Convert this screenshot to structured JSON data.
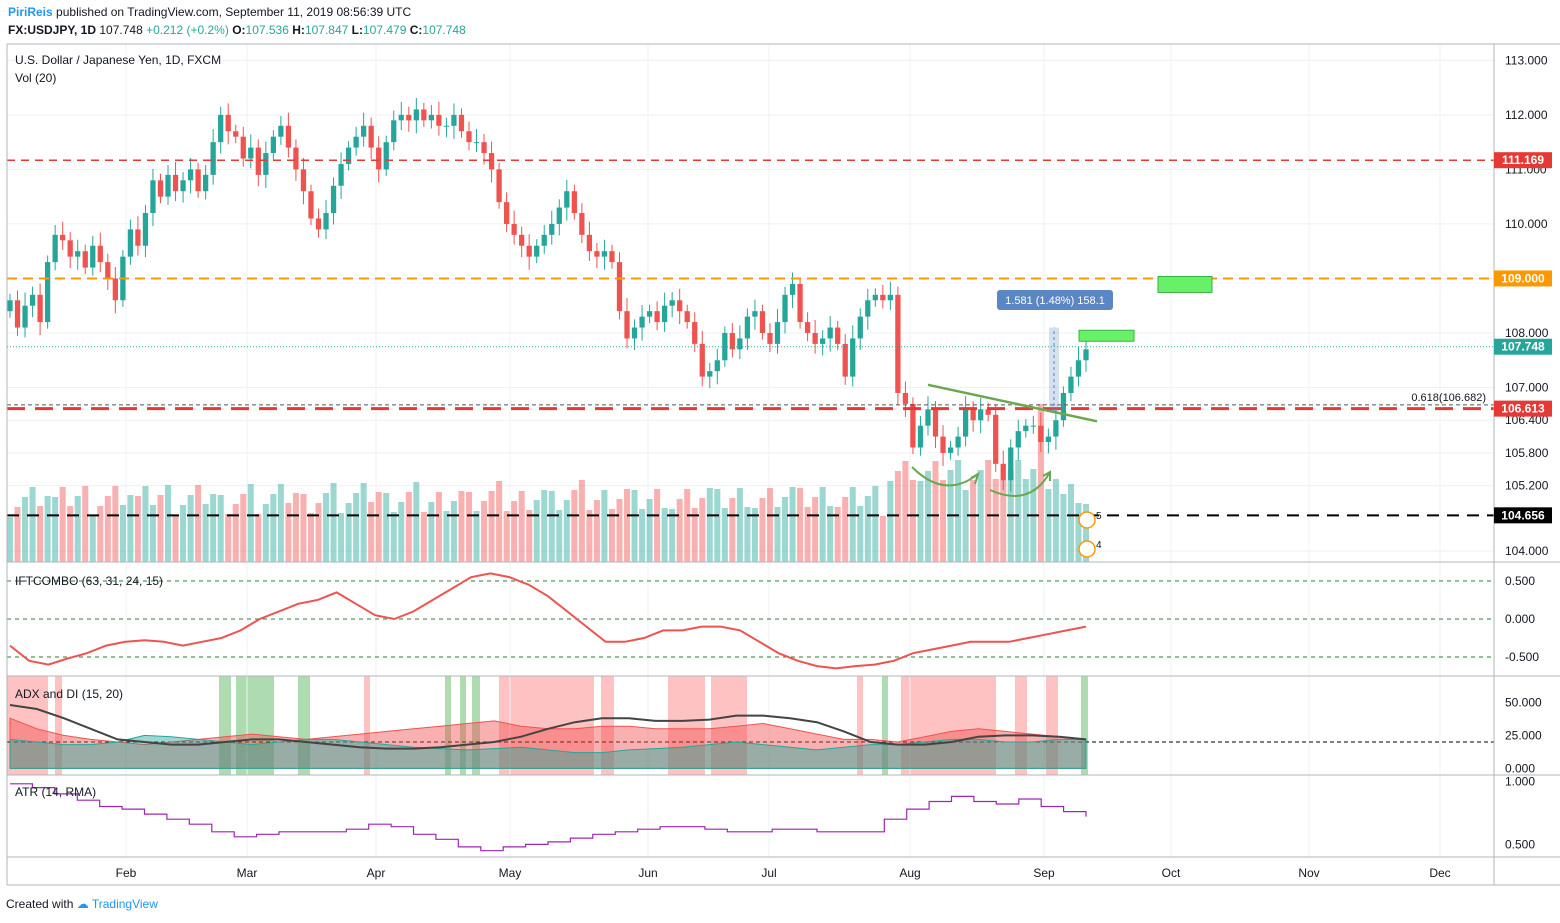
{
  "header": {
    "author": "PiriReis",
    "published_text": "published on TradingView.com, September 11, 2019 08:56:39 UTC",
    "symbol": "FX:USDJPY, 1D",
    "last": "107.748",
    "change": "+0.212 (+0.2%)",
    "o_label": "O:",
    "o": "107.536",
    "h_label": "H:",
    "h": "107.847",
    "l_label": "L:",
    "l": "107.479",
    "c_label": "C:",
    "c": "107.748"
  },
  "footer": {
    "created_with": "Created with",
    "brand": "TradingView"
  },
  "colors": {
    "up": "#26a69a",
    "down": "#ef5350",
    "orange": "#ff9800",
    "red_line": "#e53935",
    "black_line": "#000000",
    "measure": "#5b86c4",
    "target": "#69f069",
    "trend": "#6aa84f",
    "ift": "#ef5350",
    "atr": "#9c27b0"
  },
  "chart_data": [
    {
      "type": "candlestick",
      "title": "U.S. Dollar / Japanese Yen, 1D, FXCM",
      "volume_label": "Vol (20)",
      "x_ticks": [
        "Feb",
        "Mar",
        "Apr",
        "May",
        "Jun",
        "Jul",
        "Aug",
        "Sep",
        "Oct",
        "Nov",
        "Dec"
      ],
      "y_ticks": [
        "113.000",
        "112.000",
        "111.000",
        "110.000",
        "109.000",
        "108.000",
        "107.000",
        "106.400",
        "105.800",
        "105.200",
        "104.000"
      ],
      "ylim": [
        103.8,
        113.3
      ],
      "series_close": [
        108.6,
        108.1,
        108.5,
        108.7,
        108.2,
        109.3,
        109.8,
        109.7,
        109.4,
        109.5,
        109.2,
        109.6,
        109.3,
        109.0,
        108.6,
        109.4,
        109.9,
        109.6,
        110.2,
        110.8,
        110.5,
        110.9,
        110.6,
        110.8,
        111.0,
        110.6,
        110.9,
        111.5,
        112.0,
        111.7,
        111.6,
        111.2,
        111.4,
        110.9,
        111.3,
        111.6,
        111.8,
        111.4,
        111.0,
        110.6,
        110.1,
        109.9,
        110.2,
        110.7,
        111.1,
        111.4,
        111.6,
        111.8,
        111.4,
        111.0,
        111.5,
        111.9,
        112.0,
        111.9,
        112.1,
        111.9,
        112.0,
        111.8,
        111.8,
        112.0,
        111.7,
        111.5,
        111.5,
        111.3,
        111.0,
        110.4,
        110.0,
        109.8,
        109.6,
        109.4,
        109.6,
        109.8,
        110.0,
        110.3,
        110.6,
        110.2,
        109.8,
        109.5,
        109.4,
        109.5,
        109.3,
        108.4,
        107.9,
        108.1,
        108.3,
        108.4,
        108.2,
        108.5,
        108.6,
        108.4,
        108.2,
        107.8,
        107.2,
        107.3,
        107.5,
        108.0,
        107.7,
        107.9,
        108.3,
        108.4,
        108.0,
        107.8,
        108.2,
        108.7,
        108.9,
        108.2,
        108.0,
        107.8,
        107.9,
        108.1,
        107.8,
        107.2,
        107.9,
        108.3,
        108.6,
        108.7,
        108.6,
        108.7,
        106.9,
        106.7,
        105.9,
        106.3,
        106.6,
        106.1,
        105.8,
        105.9,
        106.1,
        106.6,
        106.4,
        106.6,
        106.5,
        105.6,
        105.3,
        105.9,
        106.2,
        106.3,
        106.3,
        106.0,
        106.1,
        106.4,
        106.9,
        107.2,
        107.5,
        107.7
      ]
    },
    {
      "type": "line",
      "title": "IFTCOMBO (63, 31, 24, 15)",
      "y_ticks": [
        "0.500",
        "0.000",
        "-0.500"
      ],
      "ylim": [
        -0.75,
        0.75
      ],
      "values": [
        -0.35,
        -0.55,
        -0.6,
        -0.52,
        -0.45,
        -0.35,
        -0.3,
        -0.28,
        -0.3,
        -0.35,
        -0.3,
        -0.25,
        -0.15,
        0.0,
        0.1,
        0.2,
        0.25,
        0.35,
        0.2,
        0.05,
        0.0,
        0.1,
        0.25,
        0.4,
        0.55,
        0.6,
        0.55,
        0.45,
        0.3,
        0.1,
        -0.1,
        -0.3,
        -0.3,
        -0.25,
        -0.15,
        -0.15,
        -0.1,
        -0.1,
        -0.15,
        -0.3,
        -0.45,
        -0.55,
        -0.62,
        -0.65,
        -0.62,
        -0.6,
        -0.55,
        -0.45,
        -0.4,
        -0.35,
        -0.3,
        -0.3,
        -0.3,
        -0.25,
        -0.2,
        -0.15,
        -0.1
      ]
    },
    {
      "type": "area",
      "title": "ADX and DI (15, 20)",
      "y_ticks": [
        "50.000",
        "25.000",
        "0.000"
      ],
      "ylim": [
        -5,
        70
      ],
      "threshold": 20,
      "adx": [
        48,
        45,
        38,
        30,
        22,
        20,
        18,
        18,
        20,
        22,
        22,
        20,
        18,
        16,
        15,
        15,
        16,
        18,
        20,
        24,
        30,
        35,
        38,
        38,
        36,
        36,
        37,
        40,
        40,
        38,
        35,
        28,
        20,
        18,
        18,
        20,
        24,
        25,
        25,
        24,
        22
      ],
      "di_plus": [
        22,
        20,
        18,
        18,
        20,
        25,
        24,
        22,
        20,
        18,
        20,
        22,
        22,
        20,
        18,
        16,
        15,
        14,
        15,
        16,
        14,
        12,
        12,
        14,
        15,
        16,
        18,
        20,
        18,
        16,
        14,
        16,
        18,
        18,
        20,
        22,
        22,
        20,
        20,
        22,
        22
      ],
      "di_minus": [
        38,
        30,
        25,
        22,
        20,
        18,
        20,
        22,
        24,
        26,
        24,
        22,
        24,
        26,
        28,
        30,
        32,
        34,
        36,
        32,
        30,
        30,
        32,
        32,
        30,
        30,
        30,
        32,
        34,
        30,
        26,
        22,
        22,
        20,
        24,
        28,
        30,
        28,
        26,
        24,
        22
      ]
    },
    {
      "type": "line",
      "title": "ATR (14, RMA)",
      "y_ticks": [
        "1.000",
        "0.500"
      ],
      "ylim": [
        0.4,
        1.05
      ],
      "values": [
        0.98,
        0.95,
        0.9,
        0.85,
        0.8,
        0.78,
        0.74,
        0.7,
        0.66,
        0.6,
        0.56,
        0.58,
        0.6,
        0.6,
        0.6,
        0.62,
        0.66,
        0.64,
        0.58,
        0.54,
        0.48,
        0.45,
        0.48,
        0.5,
        0.52,
        0.55,
        0.58,
        0.6,
        0.62,
        0.64,
        0.64,
        0.62,
        0.6,
        0.6,
        0.62,
        0.62,
        0.6,
        0.6,
        0.6,
        0.7,
        0.78,
        0.84,
        0.88,
        0.84,
        0.82,
        0.86,
        0.8,
        0.76,
        0.72
      ]
    }
  ],
  "annotations": {
    "price_labels": [
      {
        "text": "111.169",
        "price": 111.169,
        "kind": "red"
      },
      {
        "text": "109.000",
        "price": 109.0,
        "kind": "orange"
      },
      {
        "text": "107.748",
        "price": 107.748,
        "kind": "last"
      },
      {
        "text": "106.613",
        "price": 106.613,
        "kind": "red"
      },
      {
        "text": "104.656",
        "price": 104.656,
        "kind": "black"
      }
    ],
    "fib_label": "0.618(106.682)",
    "fib_price": 106.682,
    "measure_label": "1.581 (1.48%) 158.1",
    "event_counts": [
      "5",
      "4"
    ]
  }
}
